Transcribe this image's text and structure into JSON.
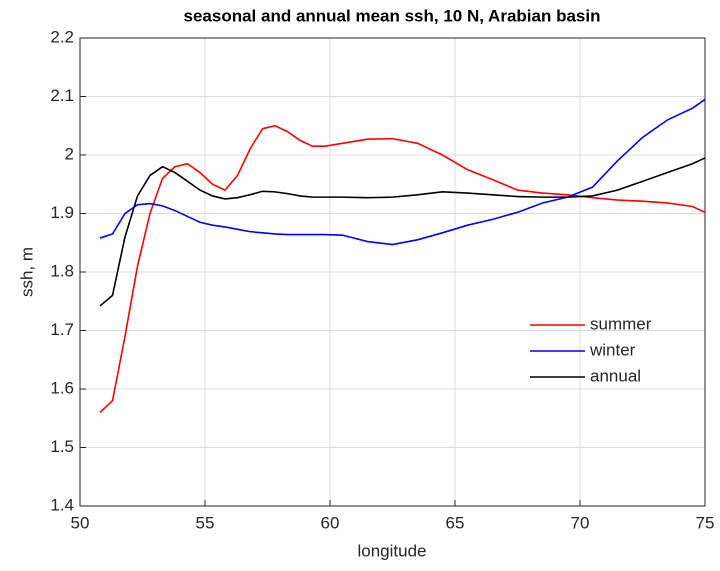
{
  "chart_data": {
    "type": "line",
    "title": "seasonal and annual mean ssh, 10 N, Arabian basin",
    "x_label": "longitude",
    "y_label": "ssh, m",
    "x": [
      50.8,
      51.3,
      51.8,
      52.3,
      52.8,
      53.3,
      53.8,
      54.3,
      54.8,
      55.3,
      55.8,
      56.3,
      56.8,
      57.3,
      57.8,
      58.3,
      58.8,
      59.3,
      59.8,
      60.5,
      61.5,
      62.5,
      63.5,
      64.5,
      65.5,
      66.5,
      67.5,
      68.5,
      69.5,
      70.5,
      71.5,
      72.5,
      73.5,
      74.5,
      75
    ],
    "series": [
      {
        "name": "summer",
        "color": "#ff0000",
        "values": [
          1.56,
          1.58,
          1.69,
          1.81,
          1.9,
          1.96,
          1.98,
          1.985,
          1.97,
          1.95,
          1.94,
          1.965,
          2.01,
          2.045,
          2.05,
          2.04,
          2.025,
          2.015,
          2.015,
          2.02,
          2.027,
          2.028,
          2.02,
          2.0,
          1.975,
          1.958,
          1.94,
          1.935,
          1.932,
          1.927,
          1.923,
          1.921,
          1.918,
          1.912,
          1.902
        ]
      },
      {
        "name": "winter",
        "color": "#0000ff",
        "values": [
          1.858,
          1.865,
          1.9,
          1.915,
          1.917,
          1.913,
          1.905,
          1.895,
          1.885,
          1.88,
          1.877,
          1.873,
          1.869,
          1.867,
          1.865,
          1.864,
          1.864,
          1.864,
          1.864,
          1.863,
          1.852,
          1.847,
          1.855,
          1.867,
          1.88,
          1.89,
          1.902,
          1.918,
          1.928,
          1.945,
          1.99,
          2.03,
          2.06,
          2.08,
          2.095
        ]
      },
      {
        "name": "annual",
        "color": "#000000",
        "values": [
          1.742,
          1.76,
          1.86,
          1.93,
          1.965,
          1.98,
          1.97,
          1.955,
          1.94,
          1.93,
          1.925,
          1.927,
          1.932,
          1.938,
          1.937,
          1.934,
          1.93,
          1.928,
          1.928,
          1.928,
          1.927,
          1.928,
          1.932,
          1.937,
          1.935,
          1.932,
          1.929,
          1.928,
          1.928,
          1.93,
          1.94,
          1.955,
          1.97,
          1.985,
          1.995
        ]
      }
    ],
    "xlim": [
      50,
      75
    ],
    "ylim": [
      1.4,
      2.2
    ],
    "xticks": [
      50,
      55,
      60,
      65,
      70,
      75
    ],
    "yticks": [
      1.4,
      1.5,
      1.6,
      1.7,
      1.8,
      1.9,
      2,
      2.1,
      2.2
    ],
    "grid": true,
    "legend_position": "east"
  }
}
